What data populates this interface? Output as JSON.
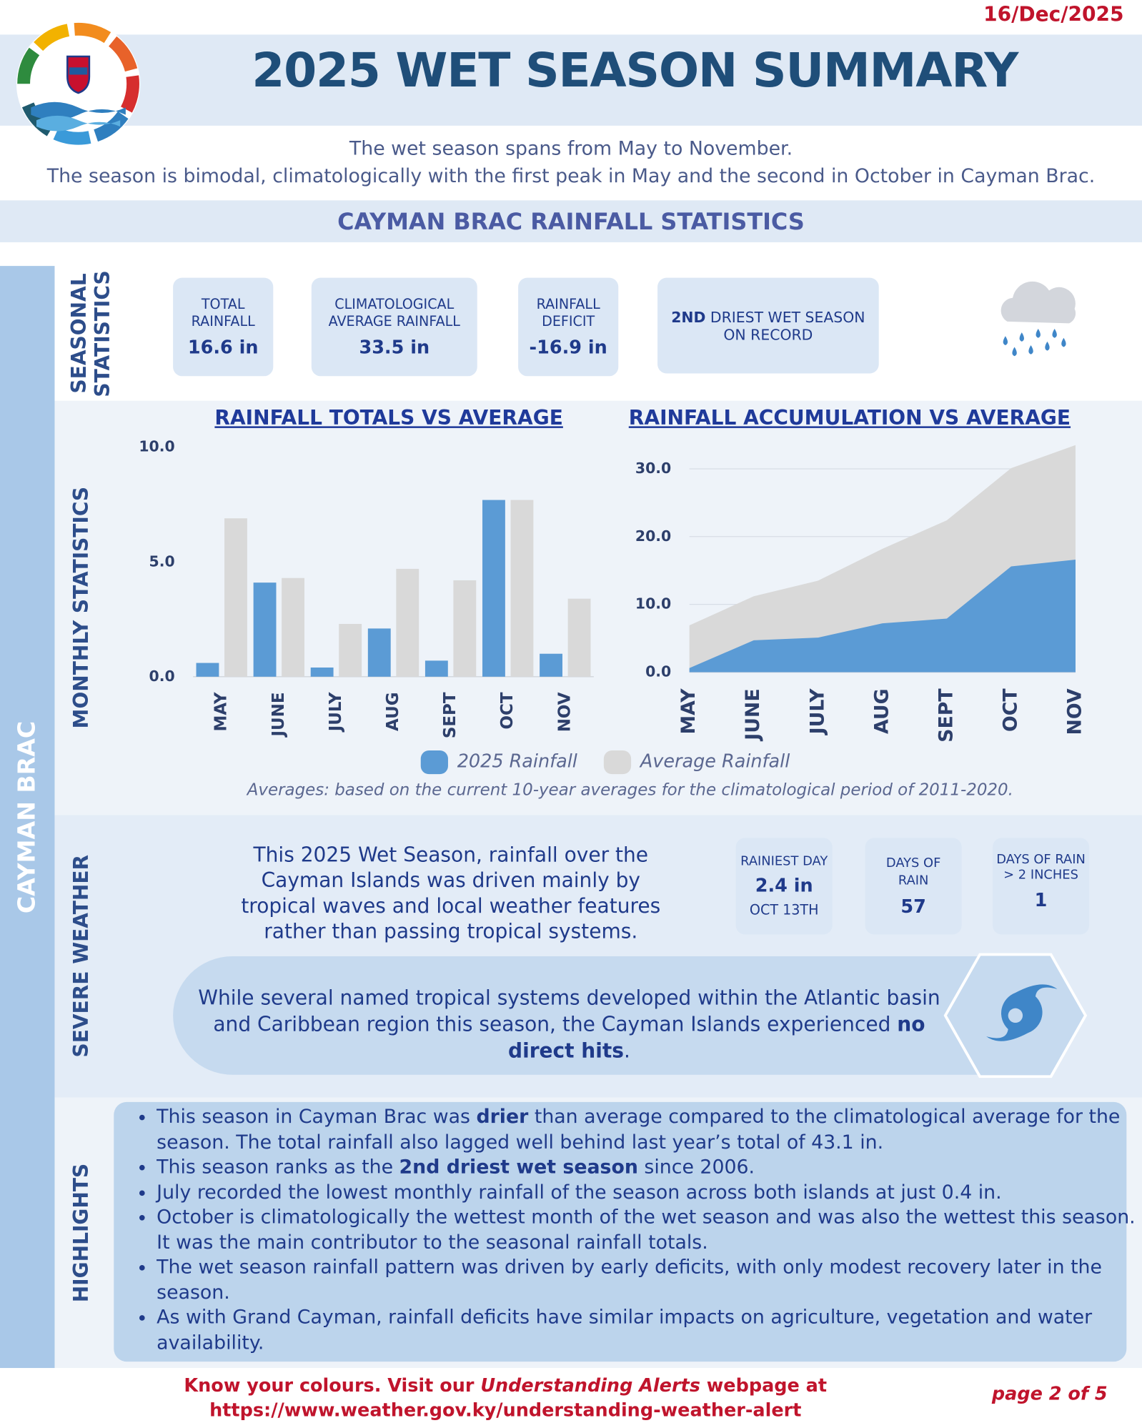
{
  "date": "16/Dec/2025",
  "header": {
    "title": "2025 WET SEASON SUMMARY",
    "subtitle": [
      "The wet season spans from May to November.",
      "The season is bimodal, climatologically with the first peak in May and the second in October in Cayman Brac."
    ]
  },
  "section_title": "CAYMAN BRAC RAINFALL STATISTICS",
  "island": "CAYMAN BRAC",
  "section_labels": {
    "seasonal": "SEASONAL STATISTICS",
    "monthly": "MONTHLY STATISTICS",
    "severe": "SEVERE WEATHER",
    "highlights": "HIGHLIGHTS"
  },
  "seasonal_stats": [
    {
      "label": "TOTAL RAINFALL",
      "value": "16.6 in"
    },
    {
      "label": "CLIMATOLOGICAL AVERAGE RAINFALL",
      "value": "33.5 in"
    },
    {
      "label": "RAINFALL DEFICIT",
      "value": "-16.9 in"
    }
  ],
  "rank": [
    "2ND",
    " DRIEST WET SEASON ON RECORD"
  ],
  "chart_data": [
    {
      "type": "bar",
      "title": "RAINFALL TOTALS VS AVERAGE",
      "categories": [
        "MAY",
        "JUNE",
        "JULY",
        "AUG",
        "SEPT",
        "OCT",
        "NOV"
      ],
      "series": [
        {
          "name": "2025 Rainfall",
          "color": "#5b9bd5",
          "values": [
            0.6,
            4.1,
            0.4,
            2.1,
            0.7,
            7.7,
            1.0
          ]
        },
        {
          "name": "Average Rainfall",
          "color": "#d9d9d9",
          "values": [
            6.9,
            4.3,
            2.3,
            4.7,
            4.2,
            7.7,
            3.4
          ]
        }
      ],
      "ylim": [
        0,
        10
      ],
      "yticks": [
        {
          "value": 0,
          "label": "0.0"
        },
        {
          "value": 5,
          "label": "5.0"
        },
        {
          "value": 10,
          "label": "10.0"
        }
      ],
      "grid": false,
      "legend": "bottom",
      "note": "Averages: based on the current 10-year averages for the climatological period of 2011-2020."
    },
    {
      "type": "area",
      "title": "RAINFALL ACCUMULATION VS AVERAGE",
      "categories": [
        "MAY",
        "JUNE",
        "JULY",
        "AUG",
        "SEPT",
        "OCT",
        "NOV"
      ],
      "series": [
        {
          "color": "#5b9bd5",
          "values": [
            0.6,
            4.7,
            5.1,
            7.2,
            7.9,
            15.6,
            16.6
          ]
        },
        {
          "color": "#d9d9d9",
          "values": [
            6.9,
            11.2,
            13.5,
            18.2,
            22.4,
            30.1,
            33.5
          ]
        }
      ],
      "ylim": [
        0,
        34
      ],
      "yticks": [
        {
          "value": 0,
          "label": "0.0"
        },
        {
          "value": 10,
          "label": "10.0"
        },
        {
          "value": 20,
          "label": "20.0"
        },
        {
          "value": 30,
          "label": "30.0"
        }
      ],
      "grid": true
    }
  ],
  "severe_weather": {
    "text": "This 2025 Wet Season, rainfall over the Cayman Islands was driven mainly by tropical waves and local weather features rather than passing tropical systems.",
    "stats": [
      {
        "label": "RAINIEST DAY",
        "value": "2.4 in",
        "note": "OCT 13TH"
      },
      {
        "label": "DAYS OF RAIN",
        "value": "57"
      },
      {
        "label": "DAYS OF RAIN > 2 INCHES",
        "value": "1"
      }
    ],
    "tropical": [
      "While several named tropical systems developed within the Atlantic basin and Caribbean region this season, the Cayman Islands experienced ",
      "no direct hits",
      "."
    ]
  },
  "highlights": [
    [
      "This season in Cayman Brac was ",
      "drier",
      " than average compared to the climatological average for the season. The total rainfall also lagged well behind last year’s total of 43.1 in."
    ],
    [
      "This season ranks as the ",
      "2nd driest wet season",
      " since 2006."
    ],
    [
      "July recorded the lowest monthly rainfall of the season across both islands at just 0.4 in."
    ],
    [
      "October is climatologically the wettest month of the wet season and was also the wettest this season. It was the main contributor to the seasonal rainfall totals."
    ],
    [
      "The wet season rainfall pattern was driven by early deficits, with only modest recovery later in the season."
    ],
    [
      "As with Grand Cayman, rainfall deficits have similar impacts on agriculture, vegetation and water availability."
    ]
  ],
  "footer": {
    "lines": [
      [
        "Know your colours. Visit our ",
        "Understanding Alerts",
        " webpage at"
      ],
      [
        "https://www.weather.gov.ky/understanding-weather-alert"
      ]
    ],
    "page": "page 2 of 5"
  }
}
